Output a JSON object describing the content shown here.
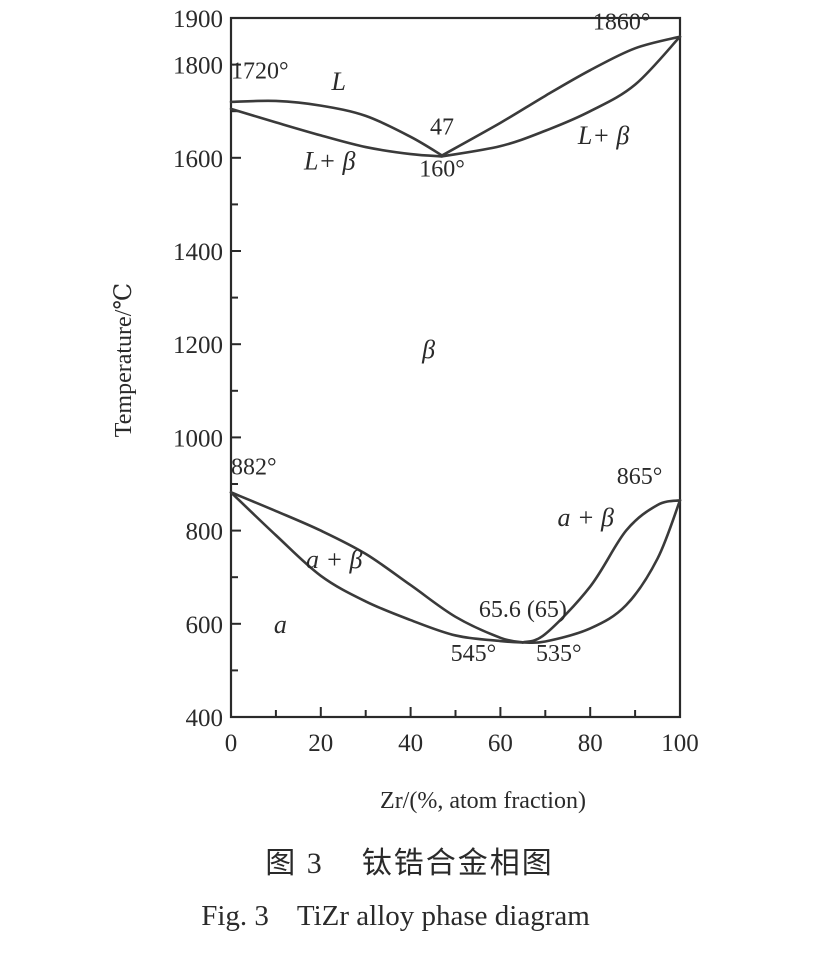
{
  "chart_data": {
    "type": "line",
    "title": "",
    "xlabel": "Zr/(%, atom fraction)",
    "ylabel": "Temperature/℃",
    "xlim": [
      0,
      100
    ],
    "ylim": [
      400,
      1900
    ],
    "x_ticks": [
      "0",
      "20",
      "40",
      "60",
      "80",
      "100"
    ],
    "y_ticks": [
      "400",
      "600",
      "800",
      "1000",
      "1200",
      "1400",
      "1600",
      "1800",
      "1900"
    ],
    "series": [
      {
        "x": [
          0,
          10,
          20,
          30,
          40,
          47
        ],
        "y": [
          1720,
          1722,
          1712,
          1690,
          1645,
          1605
        ]
      },
      {
        "x": [
          0,
          10,
          20,
          30,
          40,
          47
        ],
        "y": [
          1705,
          1676,
          1648,
          1623,
          1608,
          1603
        ]
      },
      {
        "x": [
          47,
          60,
          70,
          80,
          90,
          100
        ],
        "y": [
          1605,
          1675,
          1733,
          1788,
          1835,
          1860
        ]
      },
      {
        "x": [
          47,
          60,
          70,
          80,
          90,
          100
        ],
        "y": [
          1603,
          1625,
          1658,
          1700,
          1757,
          1860
        ]
      },
      {
        "x": [
          0,
          10,
          20,
          30,
          40,
          50,
          60,
          65
        ],
        "y": [
          882,
          842,
          800,
          750,
          683,
          615,
          570,
          560
        ]
      },
      {
        "x": [
          0,
          10,
          20,
          30,
          40,
          50,
          60,
          65
        ],
        "y": [
          882,
          790,
          703,
          648,
          608,
          575,
          563,
          560
        ]
      },
      {
        "x": [
          65,
          70,
          80,
          88,
          95,
          100
        ],
        "y": [
          560,
          578,
          680,
          800,
          855,
          865
        ]
      },
      {
        "x": [
          65,
          70,
          80,
          88,
          95,
          100
        ],
        "y": [
          560,
          562,
          590,
          640,
          740,
          865
        ]
      }
    ],
    "regions": [
      {
        "label": "L",
        "x": 24,
        "y": 1745
      },
      {
        "label": "L+ β",
        "x": 22,
        "y": 1575
      },
      {
        "label": "L+ β",
        "x": 83,
        "y": 1630
      },
      {
        "label": "β",
        "x": 44,
        "y": 1170
      },
      {
        "label": "a + β",
        "x": 23,
        "y": 720
      },
      {
        "label": "a + β",
        "x": 79,
        "y": 810
      },
      {
        "label": "a",
        "x": 11,
        "y": 580
      }
    ],
    "annotations": [
      {
        "text": "1720°",
        "x": 0,
        "y": 1770
      },
      {
        "text": "47",
        "x": 47,
        "y": 1650
      },
      {
        "text": "160°",
        "x": 47,
        "y": 1560
      },
      {
        "text": "1860°",
        "x": 87,
        "y": 1875
      },
      {
        "text": "882°",
        "x": 0,
        "y": 920
      },
      {
        "text": "865°",
        "x": 91,
        "y": 900
      },
      {
        "text": "65.6 (65)",
        "x": 65,
        "y": 615
      },
      {
        "text": "545°",
        "x": 54,
        "y": 520
      },
      {
        "text": "535°",
        "x": 73,
        "y": 520
      }
    ]
  },
  "caption": {
    "cn_number": "图 3",
    "cn_title": "钛锆合金相图",
    "en_number": "Fig. 3",
    "en_title": "TiZr alloy phase diagram"
  }
}
